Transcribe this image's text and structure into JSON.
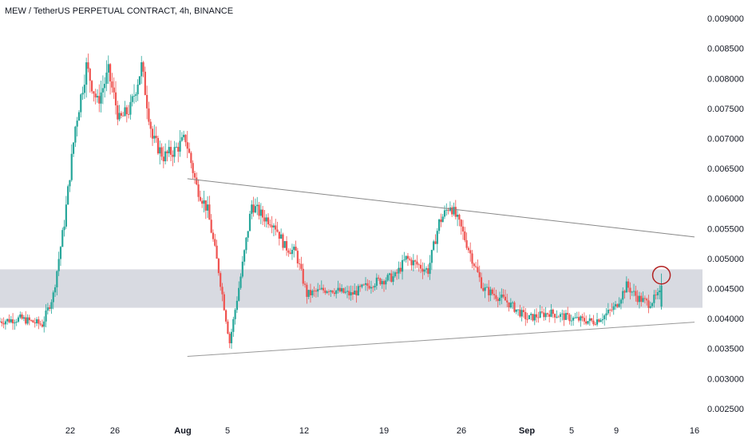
{
  "chart_data": {
    "type": "candlestick",
    "title": "MEW / TetherUS PERPETUAL CONTRACT, 4h, BINANCE",
    "ylim": [
      0.0023,
      0.0092
    ],
    "y_ticks": [
      "0.009000",
      "0.008500",
      "0.008000",
      "0.007500",
      "0.007000",
      "0.006500",
      "0.006000",
      "0.005500",
      "0.005000",
      "0.004500",
      "0.004000",
      "0.003500",
      "0.003000",
      "0.002500"
    ],
    "x_ticks": [
      {
        "label": "22",
        "bold": false
      },
      {
        "label": "26",
        "bold": false
      },
      {
        "label": "Aug",
        "bold": true
      },
      {
        "label": "5",
        "bold": false
      },
      {
        "label": "12",
        "bold": false
      },
      {
        "label": "19",
        "bold": false
      },
      {
        "label": "26",
        "bold": false
      },
      {
        "label": "Sep",
        "bold": true
      },
      {
        "label": "5",
        "bold": false
      },
      {
        "label": "9",
        "bold": false
      },
      {
        "label": "16",
        "bold": false
      }
    ],
    "date_range": [
      "2024-07-15",
      "2024-09-16"
    ],
    "up_color": "#26a69a",
    "down_color": "#ef5350",
    "price_path": [
      [
        "2024-07-15",
        0.00395
      ],
      [
        "2024-07-17",
        0.004
      ],
      [
        "2024-07-19",
        0.0039
      ],
      [
        "2024-07-20",
        0.0044
      ],
      [
        "2024-07-21",
        0.0056
      ],
      [
        "2024-07-22",
        0.0072
      ],
      [
        "2024-07-23",
        0.0082
      ],
      [
        "2024-07-24",
        0.0076
      ],
      [
        "2024-07-25",
        0.0081
      ],
      [
        "2024-07-26",
        0.0073
      ],
      [
        "2024-07-27",
        0.0075
      ],
      [
        "2024-07-28",
        0.0082
      ],
      [
        "2024-07-29",
        0.007
      ],
      [
        "2024-07-30",
        0.0067
      ],
      [
        "2024-07-31",
        0.0068
      ],
      [
        "2024-08-01",
        0.007
      ],
      [
        "2024-08-02",
        0.0062
      ],
      [
        "2024-08-03",
        0.0058
      ],
      [
        "2024-08-04",
        0.0048
      ],
      [
        "2024-08-05",
        0.0036
      ],
      [
        "2024-08-06",
        0.0047
      ],
      [
        "2024-08-07",
        0.0059
      ],
      [
        "2024-08-08",
        0.0057
      ],
      [
        "2024-08-09",
        0.0056
      ],
      [
        "2024-08-10",
        0.0052
      ],
      [
        "2024-08-11",
        0.0051
      ],
      [
        "2024-08-12",
        0.0044
      ],
      [
        "2024-08-14",
        0.0045
      ],
      [
        "2024-08-16",
        0.0044
      ],
      [
        "2024-08-18",
        0.0046
      ],
      [
        "2024-08-20",
        0.0047
      ],
      [
        "2024-08-21",
        0.005
      ],
      [
        "2024-08-23",
        0.0048
      ],
      [
        "2024-08-24",
        0.0056
      ],
      [
        "2024-08-25",
        0.0059
      ],
      [
        "2024-08-26",
        0.0055
      ],
      [
        "2024-08-27",
        0.005
      ],
      [
        "2024-08-28",
        0.0045
      ],
      [
        "2024-08-30",
        0.0043
      ],
      [
        "2024-09-01",
        0.004
      ],
      [
        "2024-09-03",
        0.0041
      ],
      [
        "2024-09-05",
        0.004
      ],
      [
        "2024-09-07",
        0.00395
      ],
      [
        "2024-09-08",
        0.00405
      ],
      [
        "2024-09-09",
        0.0042
      ],
      [
        "2024-09-10",
        0.00455
      ],
      [
        "2024-09-11",
        0.00435
      ],
      [
        "2024-09-12",
        0.00425
      ],
      [
        "2024-09-13",
        0.0044
      ]
    ],
    "spike_candle": {
      "date": "2024-09-13",
      "open": 0.0042,
      "high": 0.00475,
      "low": 0.00415,
      "close": 0.00455
    },
    "support_zone": {
      "from": 0.00418,
      "to": 0.00482,
      "color": "#d1d4dc"
    },
    "trendlines": [
      {
        "name": "resistance",
        "from": [
          "2024-08-01",
          0.00633
        ],
        "to": [
          "2024-09-16",
          0.00536
        ],
        "color": "#888888"
      },
      {
        "name": "support",
        "from": [
          "2024-08-01",
          0.00337
        ],
        "to": [
          "2024-09-16",
          0.00394
        ],
        "color": "#999999"
      }
    ],
    "highlight_circle": {
      "date": "2024-09-13",
      "value": 0.00475,
      "color": "#b22222"
    }
  }
}
